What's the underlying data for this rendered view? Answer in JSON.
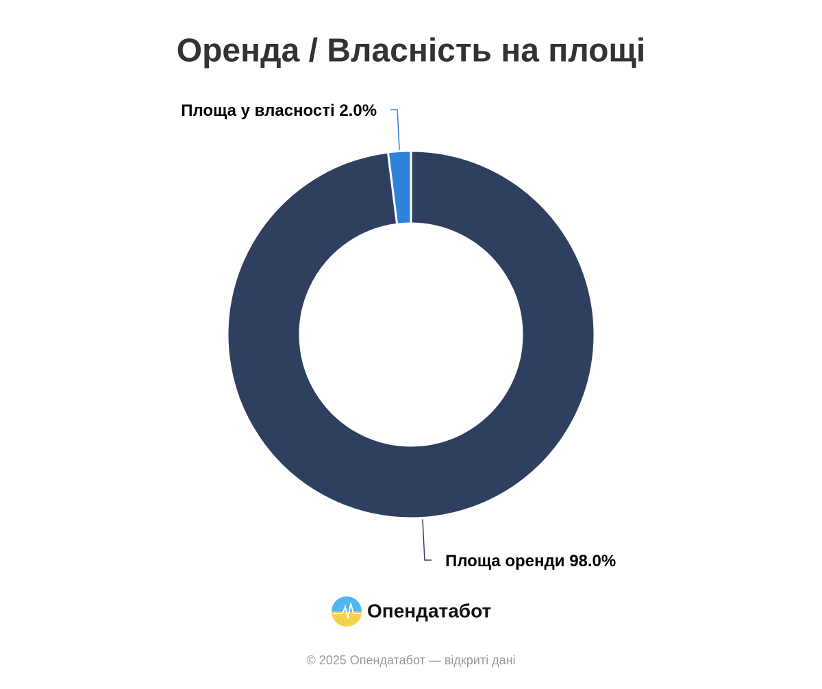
{
  "chart_data": {
    "type": "donut",
    "title": "Оренда / Власність на площі",
    "categories": [
      "Площа оренди",
      "Площа у власності"
    ],
    "values": [
      98.0,
      2.0
    ],
    "value_labels": [
      "98.0%",
      "2.0%"
    ],
    "colors": [
      "#2f3f5f",
      "#2e82d9"
    ]
  },
  "logo": {
    "text": "Опендатабот"
  },
  "footer": "© 2025 Опендатабот — відкриті дані"
}
